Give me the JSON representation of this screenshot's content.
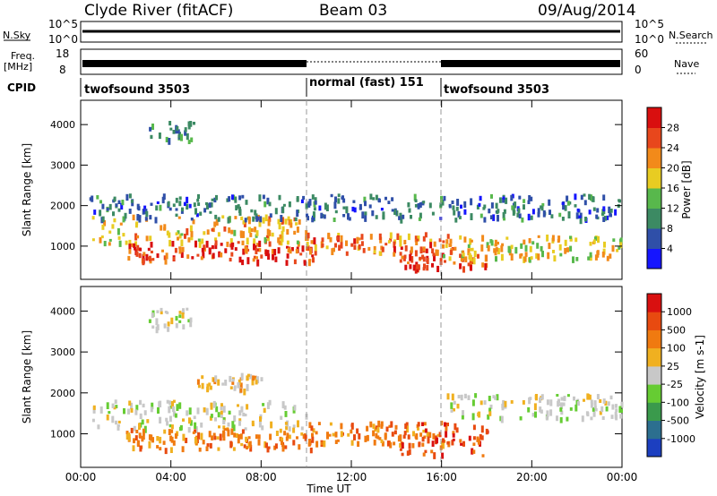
{
  "header": {
    "station": "Clyde River (fitACF)",
    "beam": "Beam 03",
    "date": "09/Aug/2014"
  },
  "strip_labels": {
    "nsky": "N.Sky",
    "nsky_ticks": [
      "10^5",
      "10^0"
    ],
    "nsearch": "N.Search",
    "nsearch_ticks": [
      "10^5",
      "10^0"
    ],
    "freq_line1": "Freq.",
    "freq_line2": "[MHz]",
    "freq_ticks": [
      "18",
      "8"
    ],
    "nave": "Nave",
    "nave_ticks": [
      "60",
      "0"
    ],
    "cpid": "CPID"
  },
  "cpid_segments": [
    {
      "label": "twofsound 3503",
      "start": 0,
      "end": 10
    },
    {
      "label": "normal (fast) 151",
      "start": 10,
      "end": 16
    },
    {
      "label": "twofsound 3503",
      "start": 16,
      "end": 24
    }
  ],
  "chart_data": [
    {
      "type": "heatmap",
      "name": "power",
      "xlabel": "Time UT",
      "ylabel": "Slant Range [km]",
      "xlim": [
        0,
        24
      ],
      "ylim": [
        180,
        4600
      ],
      "x_ticks": [
        "00:00",
        "04:00",
        "08:00",
        "12:00",
        "16:00",
        "20:00",
        "00:00"
      ],
      "y_ticks": [
        1000,
        2000,
        3000,
        4000
      ],
      "colorbar_label": "Power [dB]",
      "colorbar_ticks": [
        4,
        8,
        12,
        16,
        20,
        24,
        28
      ],
      "colorbar_range": [
        0,
        32
      ],
      "colors": [
        "#1515ff",
        "#2f4fa8",
        "#3c8a63",
        "#58b84c",
        "#e8cc22",
        "#f28a1a",
        "#e8471c",
        "#d90f0f"
      ],
      "bands": [
        {
          "t_start": 0.5,
          "t_end": 10.0,
          "r_center": 1450,
          "r_width": 350,
          "level": 20
        },
        {
          "t_start": 2.0,
          "t_end": 10.5,
          "r_center": 900,
          "r_width": 250,
          "level": 27
        },
        {
          "t_start": 10.0,
          "t_end": 16.5,
          "r_center": 1100,
          "r_width": 250,
          "level": 24
        },
        {
          "t_start": 14.0,
          "t_end": 18.0,
          "r_center": 650,
          "r_width": 200,
          "level": 27
        },
        {
          "t_start": 16.0,
          "t_end": 24.0,
          "r_center": 1000,
          "r_width": 300,
          "level": 18
        },
        {
          "t_start": 0.3,
          "t_end": 24.0,
          "r_center": 2000,
          "r_width": 300,
          "level": 8
        },
        {
          "t_start": 3.0,
          "t_end": 5.0,
          "r_center": 3850,
          "r_width": 250,
          "level": 10
        }
      ]
    },
    {
      "type": "heatmap",
      "name": "velocity",
      "xlabel": "Time UT",
      "ylabel": "Slant Range [km]",
      "xlim": [
        0,
        24
      ],
      "ylim": [
        180,
        4600
      ],
      "x_ticks": [
        "00:00",
        "04:00",
        "08:00",
        "12:00",
        "16:00",
        "20:00",
        "00:00"
      ],
      "y_ticks": [
        1000,
        2000,
        3000,
        4000
      ],
      "colorbar_label": "Velocity [m s-1]",
      "colorbar_ticks": [
        "1000",
        "500",
        "100",
        "25",
        "-25",
        "-100",
        "-500",
        "-1000"
      ],
      "colors": [
        "#1c3fc0",
        "#2c6f8f",
        "#3a9a4c",
        "#66cc33",
        "#c8c8c8",
        "#f0b020",
        "#f07a10",
        "#e84a10",
        "#d91010"
      ],
      "bands": [
        {
          "t_start": 0.5,
          "t_end": 10.0,
          "r_center": 1500,
          "r_width": 350,
          "level": 4
        },
        {
          "t_start": 2.0,
          "t_end": 10.5,
          "r_center": 900,
          "r_width": 250,
          "level": 6
        },
        {
          "t_start": 10.0,
          "t_end": 16.5,
          "r_center": 1050,
          "r_width": 280,
          "level": 6
        },
        {
          "t_start": 14.0,
          "t_end": 18.0,
          "r_center": 900,
          "r_width": 400,
          "level": 7
        },
        {
          "t_start": 16.0,
          "t_end": 24.0,
          "r_center": 1700,
          "r_width": 300,
          "level": 4
        },
        {
          "t_start": 3.0,
          "t_end": 5.0,
          "r_center": 3850,
          "r_width": 250,
          "level": 4
        },
        {
          "t_start": 5.0,
          "t_end": 8.0,
          "r_center": 2300,
          "r_width": 200,
          "level": 5
        }
      ]
    }
  ]
}
